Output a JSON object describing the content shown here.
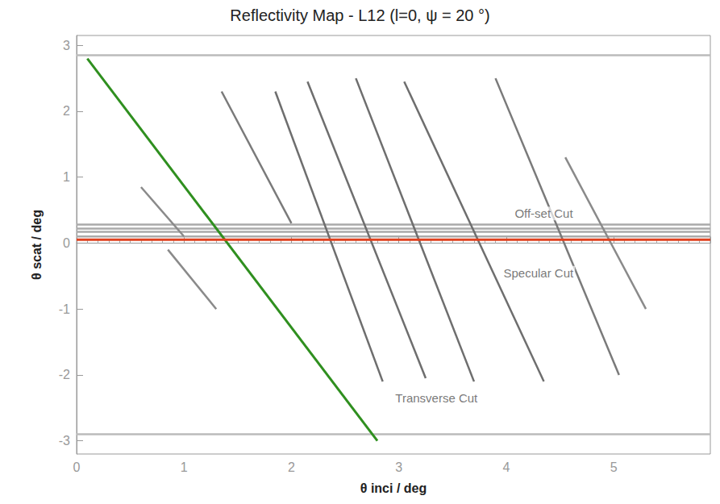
{
  "chart_data": {
    "type": "line",
    "title": "Reflectivity Map - L12 (l=0, ψ = 20 °)",
    "x_label": "θ inci / deg",
    "y_label": "θ scat / deg",
    "xlim": [
      0,
      5.9
    ],
    "xticks": [
      0,
      1,
      2,
      3,
      4,
      5
    ],
    "ylim": [
      -3.2,
      3.15
    ],
    "yticks": [
      -3,
      -2,
      -1,
      0,
      1,
      2,
      3
    ],
    "grid": false,
    "series": [
      {
        "color": "#bbbbbb",
        "line_style": "solid",
        "values": [
          [
            0,
            2.85
          ],
          [
            5.9,
            2.85
          ]
        ]
      },
      {
        "color": "#bbbbbb",
        "line_style": "solid",
        "values": [
          [
            0,
            -2.9
          ],
          [
            5.9,
            -2.9
          ]
        ]
      },
      {
        "color": "#aaaaaa",
        "line_style": "solid",
        "values": [
          [
            0,
            0.1
          ],
          [
            5.9,
            0.1
          ]
        ]
      },
      {
        "color": "#aaaaaa",
        "line_style": "solid",
        "values": [
          [
            0,
            0.17
          ],
          [
            5.9,
            0.17
          ]
        ]
      },
      {
        "color": "#aaaaaa",
        "line_style": "solid",
        "values": [
          [
            0,
            0.22
          ],
          [
            5.9,
            0.22
          ]
        ]
      },
      {
        "color": "#aaaaaa",
        "line_style": "solid",
        "values": [
          [
            0,
            0.28
          ],
          [
            5.9,
            0.28
          ]
        ]
      },
      {
        "color": "#8a8a8a",
        "line_style": "solid",
        "values": [
          [
            0.6,
            0.85
          ],
          [
            1.0,
            0.1
          ]
        ]
      },
      {
        "color": "#8a8a8a",
        "line_style": "solid",
        "values": [
          [
            0.85,
            -0.1
          ],
          [
            1.3,
            -1.0
          ]
        ]
      },
      {
        "color": "#7a7a7a",
        "line_style": "solid",
        "values": [
          [
            1.35,
            2.3
          ],
          [
            2.0,
            0.3
          ]
        ]
      },
      {
        "color": "#6e6e6e",
        "line_style": "solid",
        "values": [
          [
            1.85,
            2.3
          ],
          [
            2.85,
            -2.1
          ]
        ]
      },
      {
        "color": "#6e6e6e",
        "line_style": "solid",
        "values": [
          [
            2.15,
            2.45
          ],
          [
            3.25,
            -2.05
          ]
        ]
      },
      {
        "color": "#6e6e6e",
        "line_style": "solid",
        "values": [
          [
            2.6,
            2.5
          ],
          [
            3.7,
            -2.1
          ]
        ]
      },
      {
        "color": "#6e6e6e",
        "line_style": "solid",
        "values": [
          [
            3.05,
            2.45
          ],
          [
            4.35,
            -2.1
          ]
        ]
      },
      {
        "color": "#7a7a7a",
        "line_style": "solid",
        "values": [
          [
            3.9,
            2.5
          ],
          [
            5.05,
            -2.0
          ]
        ]
      },
      {
        "color": "#8a8a8a",
        "line_style": "solid",
        "values": [
          [
            4.55,
            1.3
          ],
          [
            5.3,
            -1.0
          ]
        ]
      },
      {
        "color": "#2f8f1f",
        "line_style": "solid",
        "values": [
          [
            0.1,
            2.8
          ],
          [
            2.8,
            -3.0
          ]
        ]
      },
      {
        "color": "#e0401e",
        "line_style": "solid",
        "values": [
          [
            0,
            0.05
          ],
          [
            5.9,
            0.05
          ]
        ]
      }
    ],
    "annotations": [
      {
        "text": "Off-set Cut",
        "x": 4.35,
        "y": 0.45
      },
      {
        "text": "Specular Cut",
        "x": 4.3,
        "y": -0.45
      },
      {
        "text": "Transverse Cut",
        "x": 3.35,
        "y": -2.35
      }
    ]
  }
}
